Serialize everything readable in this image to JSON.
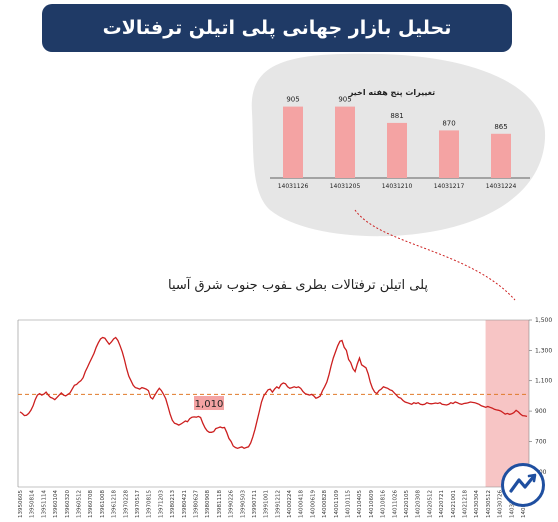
{
  "header": {
    "title": "تحلیل بازار جهانی پلی اتیلن ترفتالات"
  },
  "inset": {
    "title": "تغییرات پنج هفته اخیر",
    "categories": [
      "14031126",
      "14031205",
      "14031210",
      "14031217",
      "14031224"
    ],
    "values": [
      905,
      905,
      881,
      870,
      865
    ],
    "value_labels": [
      "905",
      "905",
      "881",
      "870",
      "865"
    ],
    "bar_color": "#f4a3a3",
    "bubble_color": "#e6e6e6"
  },
  "chart_data": {
    "type": "line",
    "title": "پلی اتیلن ترفتالات بطری ـفوب جنوب شرق آسیا",
    "y_ticks": [
      "1,500",
      "1,300",
      "1,100",
      "900",
      "700",
      "500"
    ],
    "ylim": [
      400,
      1500
    ],
    "reference_value": 1010,
    "reference_label": "1,010",
    "highlight_range_fraction": [
      0.915,
      1.0
    ],
    "x_tick_labels": [
      "13950605",
      "13950814",
      "13951114",
      "13960104",
      "13960320",
      "13960512",
      "13960708",
      "13961008",
      "13961218",
      "13970228",
      "13970517",
      "13970815",
      "13971203",
      "13980213",
      "13980421",
      "13980627",
      "13980908",
      "13981118",
      "13990226",
      "13990503",
      "13990711",
      "13991001",
      "13991212",
      "14000224",
      "14000418",
      "14000619",
      "14000828",
      "14001109",
      "14010115",
      "14010405",
      "14010609",
      "14010816",
      "14011026",
      "14020105",
      "14020308",
      "14020512",
      "14020721",
      "14021001",
      "14021218",
      "14030304",
      "14030512",
      "14030726",
      "14031004",
      "14031224"
    ],
    "series": [
      {
        "color": "#cc1f1f",
        "values": [
          895,
          885,
          870,
          872,
          885,
          905,
          935,
          975,
          1005,
          1015,
          1005,
          1012,
          1025,
          1005,
          990,
          985,
          975,
          990,
          1005,
          1020,
          1005,
          1000,
          1010,
          1020,
          1045,
          1070,
          1075,
          1090,
          1100,
          1120,
          1160,
          1190,
          1220,
          1250,
          1280,
          1320,
          1350,
          1375,
          1385,
          1380,
          1360,
          1340,
          1355,
          1375,
          1385,
          1365,
          1330,
          1290,
          1240,
          1180,
          1130,
          1100,
          1070,
          1055,
          1050,
          1045,
          1055,
          1050,
          1045,
          1035,
          990,
          980,
          1005,
          1030,
          1050,
          1035,
          1010,
          980,
          930,
          880,
          840,
          820,
          815,
          808,
          815,
          825,
          835,
          830,
          850,
          860,
          862,
          860,
          865,
          858,
          820,
          790,
          770,
          760,
          760,
          765,
          785,
          790,
          795,
          790,
          792,
          760,
          720,
          700,
          670,
          660,
          655,
          660,
          665,
          655,
          660,
          665,
          690,
          730,
          780,
          840,
          900,
          960,
          1000,
          1020,
          1040,
          1045,
          1025,
          1045,
          1060,
          1050,
          1075,
          1085,
          1080,
          1060,
          1050,
          1055,
          1060,
          1055,
          1060,
          1050,
          1030,
          1015,
          1010,
          1005,
          1010,
          1000,
          985,
          990,
          1000,
          1035,
          1060,
          1090,
          1140,
          1200,
          1250,
          1290,
          1330,
          1360,
          1365,
          1320,
          1300,
          1240,
          1220,
          1180,
          1160,
          1210,
          1250,
          1205,
          1195,
          1185,
          1145,
          1090,
          1050,
          1025,
          1015,
          1035,
          1045,
          1060,
          1055,
          1050,
          1040,
          1035,
          1020,
          1005,
          990,
          985,
          970,
          960,
          955,
          950,
          945,
          955,
          950,
          955,
          945,
          942,
          945,
          955,
          950,
          948,
          950,
          953,
          950,
          955,
          945,
          943,
          940,
          945,
          955,
          950,
          960,
          955,
          948,
          945,
          950,
          952,
          955,
          960,
          957,
          955,
          950,
          945,
          935,
          930,
          925,
          930,
          925,
          920,
          912,
          908,
          905,
          900,
          890,
          880,
          885,
          878,
          882,
          890,
          905,
          895,
          880,
          870,
          868,
          865
        ]
      }
    ]
  }
}
